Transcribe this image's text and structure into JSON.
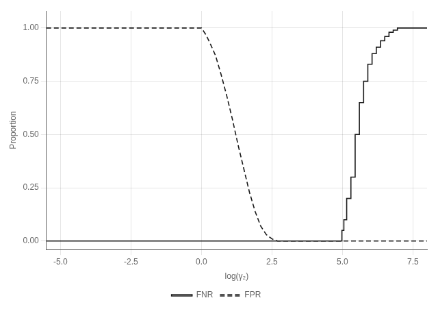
{
  "chart_data": {
    "type": "line",
    "xlabel": "log(γ₂)",
    "ylabel": "Proportion",
    "xlim": [
      -5.5,
      8.0
    ],
    "xticks": [
      {
        "value": -5.0,
        "label": "-5.0"
      },
      -2.5,
      {
        "value": 0.0,
        "label": "0.0"
      },
      2.5,
      {
        "value": 5.0,
        "label": "5.0"
      },
      7.5
    ],
    "ylim": [
      -0.04,
      1.08
    ],
    "yticks": [
      {
        "value": 0.0,
        "label": "0.00"
      },
      0.25,
      {
        "value": 0.5,
        "label": "0.50"
      },
      0.75,
      {
        "value": 1.0,
        "label": "1.00"
      }
    ],
    "grid": true,
    "legend": "bottom",
    "series": [
      {
        "name": "FNR",
        "color": "#1a1a1a",
        "line_style": "solid",
        "x": [
          -5.5,
          4.98,
          4.98,
          5.05,
          5.05,
          5.15,
          5.15,
          5.3,
          5.3,
          5.45,
          5.45,
          5.6,
          5.6,
          5.75,
          5.75,
          5.9,
          5.9,
          6.05,
          6.05,
          6.2,
          6.2,
          6.35,
          6.35,
          6.5,
          6.5,
          6.65,
          6.65,
          6.8,
          6.8,
          6.95,
          6.95,
          8.0
        ],
        "values": [
          0.0,
          0.0,
          0.05,
          0.05,
          0.1,
          0.1,
          0.2,
          0.2,
          0.3,
          0.3,
          0.5,
          0.5,
          0.65,
          0.65,
          0.75,
          0.75,
          0.83,
          0.83,
          0.88,
          0.88,
          0.91,
          0.91,
          0.94,
          0.94,
          0.96,
          0.96,
          0.98,
          0.98,
          0.99,
          0.99,
          1.0,
          1.0
        ]
      },
      {
        "name": "FPR",
        "color": "#1a1a1a",
        "line_style": "dashed",
        "x": [
          -5.5,
          0.0,
          0.15,
          0.3,
          0.5,
          0.7,
          0.9,
          1.1,
          1.3,
          1.5,
          1.7,
          1.9,
          2.1,
          2.3,
          2.5,
          2.7,
          2.9,
          3.5,
          8.0
        ],
        "values": [
          1.0,
          1.0,
          0.97,
          0.93,
          0.87,
          0.78,
          0.68,
          0.57,
          0.45,
          0.34,
          0.23,
          0.14,
          0.07,
          0.03,
          0.01,
          0.0,
          0.0,
          0.0,
          0.0
        ]
      }
    ]
  }
}
